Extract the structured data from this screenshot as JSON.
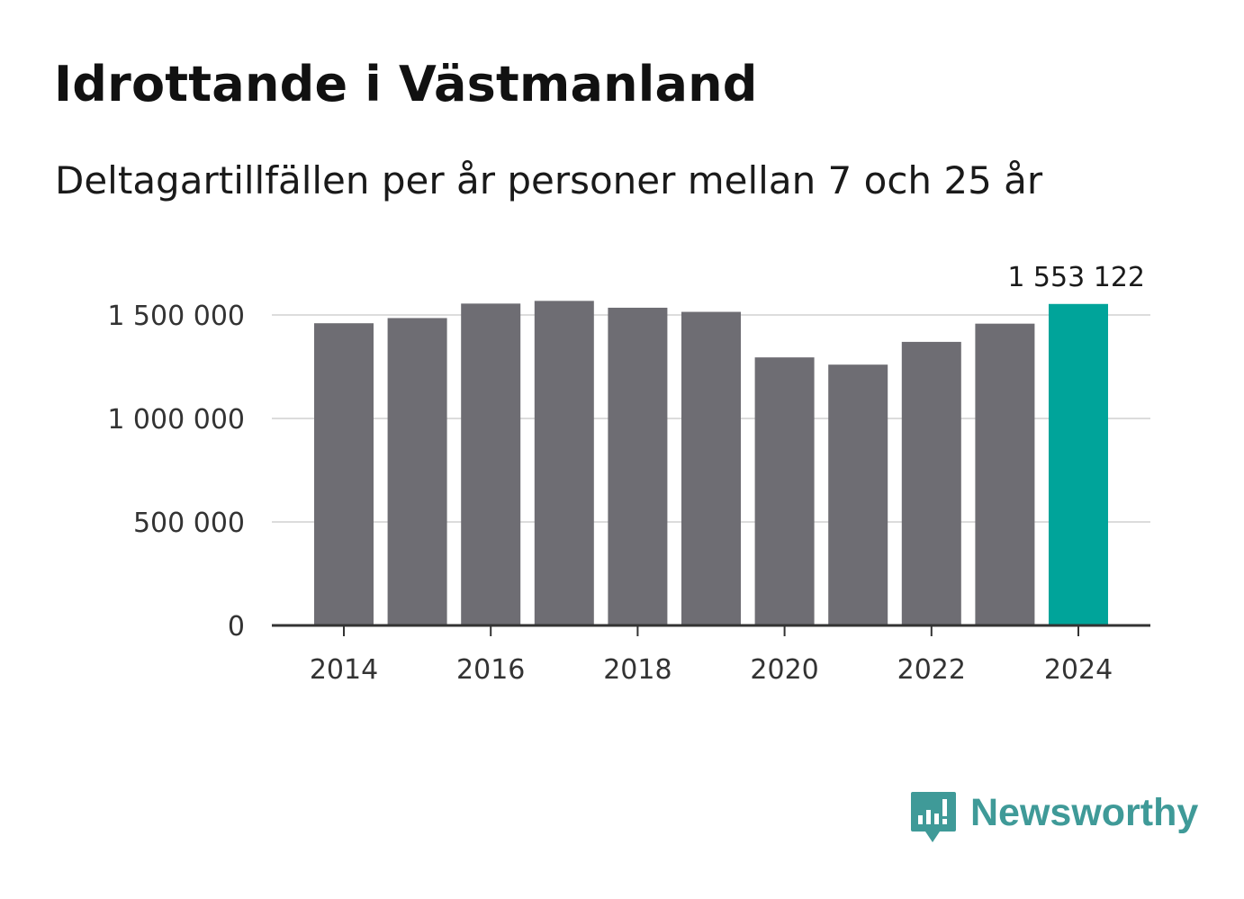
{
  "header": {
    "title": "Idrottande i Västmanland",
    "subtitle": "Deltagartillfällen per år personer mellan 7 och 25 år"
  },
  "brand": {
    "name": "Newsworthy",
    "color": "#3f9a98"
  },
  "chart_data": {
    "type": "bar",
    "title": "Idrottande i Västmanland",
    "subtitle": "Deltagartillfällen per år personer mellan 7 och 25 år",
    "xlabel": "",
    "ylabel": "",
    "categories": [
      "2014",
      "2015",
      "2016",
      "2017",
      "2018",
      "2019",
      "2020",
      "2021",
      "2022",
      "2023",
      "2024"
    ],
    "values": [
      1460000,
      1485000,
      1555000,
      1568000,
      1535000,
      1515000,
      1295000,
      1260000,
      1370000,
      1458000,
      1553122
    ],
    "highlight_index": 10,
    "highlight_label": "1 553 122",
    "ylim": [
      0,
      1600000
    ],
    "yticks": [
      0,
      500000,
      1000000,
      1500000
    ],
    "ytick_labels": [
      "0",
      "500 000",
      "1 000 000",
      "1 500 000"
    ],
    "xtick_labels": [
      "2014",
      "2016",
      "2018",
      "2020",
      "2022",
      "2024"
    ],
    "grid": true,
    "colors": {
      "bar": "#6e6d73",
      "highlight": "#00a49a",
      "grid": "#dcdcdc",
      "axis": "#333333"
    }
  }
}
